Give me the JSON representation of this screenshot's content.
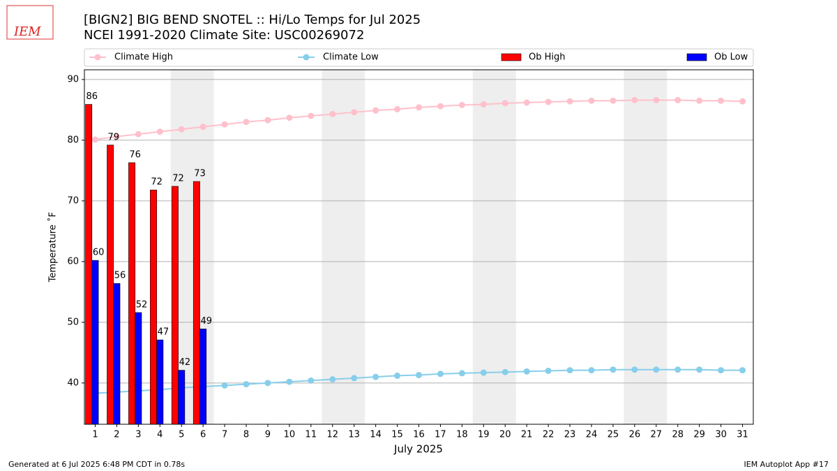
{
  "chart_data": {
    "type": "bar",
    "logo_text": "IEM",
    "title": "[BIGN2] BIG BEND SNOTEL :: Hi/Lo Temps for Jul 2025",
    "subtitle": "NCEI 1991-2020 Climate Site: USC00269072",
    "xlabel": "July 2025",
    "ylabel": "Temperature ˚F",
    "x": [
      1,
      2,
      3,
      4,
      5,
      6,
      7,
      8,
      9,
      10,
      11,
      12,
      13,
      14,
      15,
      16,
      17,
      18,
      19,
      20,
      21,
      22,
      23,
      24,
      25,
      26,
      27,
      28,
      29,
      30,
      31
    ],
    "xlim": [
      0.5,
      31.5
    ],
    "xticks": [
      1,
      2,
      3,
      4,
      5,
      6,
      7,
      8,
      9,
      10,
      11,
      12,
      13,
      14,
      15,
      16,
      17,
      18,
      19,
      20,
      21,
      22,
      23,
      24,
      25,
      26,
      27,
      28,
      29,
      30,
      31
    ],
    "ylim": [
      33.2,
      91.6
    ],
    "yticks": [
      40,
      50,
      60,
      70,
      80,
      90
    ],
    "grid": true,
    "legend": "top",
    "series": [
      {
        "name": "Climate High",
        "type": "line",
        "color": "#ffc0cb",
        "values": [
          80.1,
          80.6,
          81.0,
          81.4,
          81.8,
          82.2,
          82.6,
          83.0,
          83.3,
          83.7,
          84.0,
          84.3,
          84.6,
          84.9,
          85.1,
          85.4,
          85.6,
          85.8,
          85.9,
          86.1,
          86.2,
          86.3,
          86.4,
          86.5,
          86.5,
          86.6,
          86.6,
          86.6,
          86.5,
          86.5,
          86.4
        ]
      },
      {
        "name": "Climate Low",
        "type": "line",
        "color": "#87ceeb",
        "values": [
          38.3,
          38.5,
          38.7,
          38.9,
          39.2,
          39.4,
          39.6,
          39.8,
          40.0,
          40.2,
          40.4,
          40.6,
          40.8,
          41.0,
          41.2,
          41.3,
          41.5,
          41.6,
          41.7,
          41.8,
          41.9,
          42.0,
          42.1,
          42.1,
          42.2,
          42.2,
          42.2,
          42.2,
          42.2,
          42.1,
          42.1
        ]
      },
      {
        "name": "Ob High",
        "type": "bar",
        "color": "#ff0000",
        "values": [
          85.9,
          79.2,
          76.3,
          71.8,
          72.4,
          73.2,
          null,
          null,
          null,
          null,
          null,
          null,
          null,
          null,
          null,
          null,
          null,
          null,
          null,
          null,
          null,
          null,
          null,
          null,
          null,
          null,
          null,
          null,
          null,
          null,
          null
        ],
        "value_labels": [
          "86",
          "79",
          "76",
          "72",
          "72",
          "73",
          null,
          null,
          null,
          null,
          null,
          null,
          null,
          null,
          null,
          null,
          null,
          null,
          null,
          null,
          null,
          null,
          null,
          null,
          null,
          null,
          null,
          null,
          null,
          null,
          null
        ]
      },
      {
        "name": "Ob Low",
        "type": "bar",
        "color": "#0000ff",
        "values": [
          60.2,
          56.4,
          51.6,
          47.1,
          42.1,
          48.9,
          null,
          null,
          null,
          null,
          null,
          null,
          null,
          null,
          null,
          null,
          null,
          null,
          null,
          null,
          null,
          null,
          null,
          null,
          null,
          null,
          null,
          null,
          null,
          null,
          null
        ],
        "value_labels": [
          "60",
          "56",
          "52",
          "47",
          "42",
          "49",
          null,
          null,
          null,
          null,
          null,
          null,
          null,
          null,
          null,
          null,
          null,
          null,
          null,
          null,
          null,
          null,
          null,
          null,
          null,
          null,
          null,
          null,
          null,
          null,
          null
        ]
      }
    ],
    "footer_left": "Generated at 6 Jul 2025 6:48 PM CDT in 0.78s",
    "footer_right": "IEM Autoplot App #17"
  }
}
